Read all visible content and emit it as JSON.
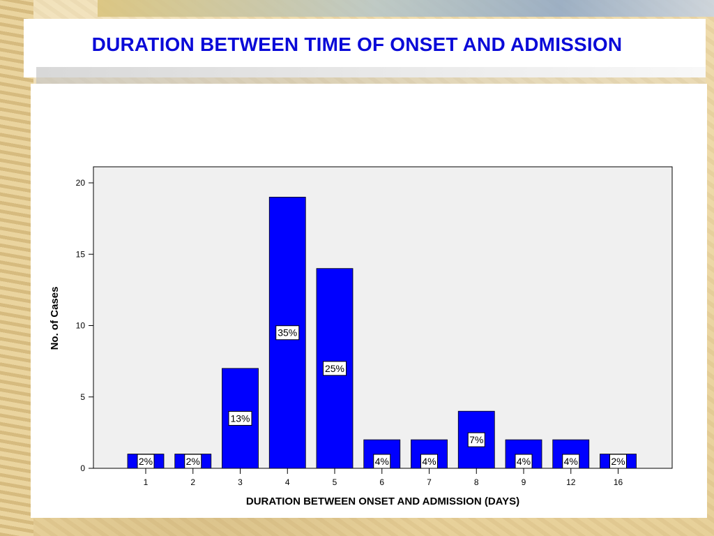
{
  "slide": {
    "title": "DURATION BETWEEN TIME OF ONSET AND ADMISSION"
  },
  "colors": {
    "title": "#0a0ad8",
    "bar": "#0000ff",
    "plot_background": "#f0f0f0"
  },
  "chart_data": {
    "type": "bar",
    "categories": [
      "1",
      "2",
      "3",
      "4",
      "5",
      "6",
      "7",
      "8",
      "9",
      "12",
      "16"
    ],
    "values": [
      1,
      1,
      7,
      19,
      14,
      2,
      2,
      4,
      2,
      2,
      1
    ],
    "data_labels": [
      "2%",
      "2%",
      "13%",
      "35%",
      "25%",
      "4%",
      "4%",
      "7%",
      "4%",
      "4%",
      "2%"
    ],
    "xlabel": "DURATION BETWEEN ONSET AND ADMISSION (DAYS)",
    "ylabel": "No. of Cases",
    "ylim": [
      0,
      21
    ],
    "yticks": [
      0,
      5,
      10,
      15,
      20
    ],
    "grid": false,
    "legend": "none"
  }
}
